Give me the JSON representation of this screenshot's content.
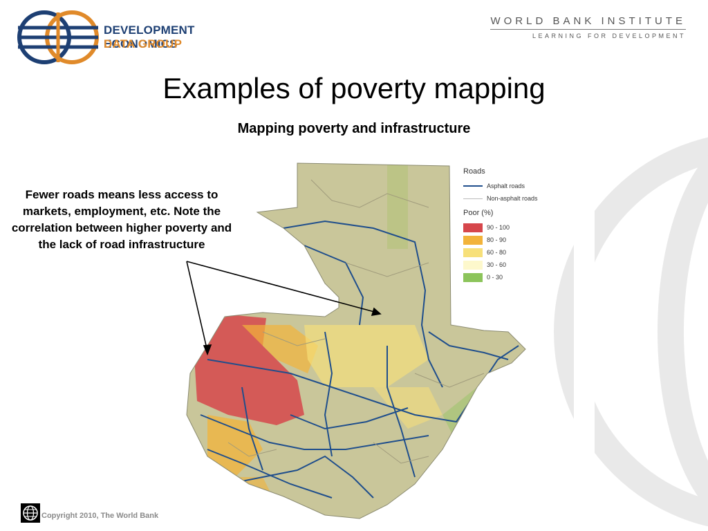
{
  "header": {
    "org_line1": "DEVELOPMENT ECONOMICS",
    "org_line2": "DATA GROUP",
    "institute": "WORLD BANK INSTITUTE",
    "institute_tagline": "LEARNING FOR DEVELOPMENT"
  },
  "slide": {
    "title": "Examples of poverty mapping",
    "subtitle": "Mapping poverty and infrastructure",
    "annotation": "Fewer roads means less access to markets, employment, etc. Note the correlation between higher poverty and the lack of road infrastructure"
  },
  "legend": {
    "roads_heading": "Roads",
    "roads": [
      {
        "label": "Asphalt roads",
        "color": "#1f4e8c"
      },
      {
        "label": "Non-asphalt roads",
        "color": "#bbbbbb"
      }
    ],
    "poor_heading": "Poor (%)",
    "poor": [
      {
        "label": "90 - 100",
        "color": "#d6464b"
      },
      {
        "label": "80 - 90",
        "color": "#f2b33a"
      },
      {
        "label": "60 - 80",
        "color": "#f7e07a"
      },
      {
        "label": "30 - 60",
        "color": "#fdf8cc"
      },
      {
        "label": "0 - 30",
        "color": "#8cc45b"
      }
    ]
  },
  "footer": {
    "copyright": "Copyright 2010, The World Bank"
  },
  "colors": {
    "navy": "#1d3f73",
    "orange": "#e08a2a",
    "map_base": "#c9c69a"
  }
}
